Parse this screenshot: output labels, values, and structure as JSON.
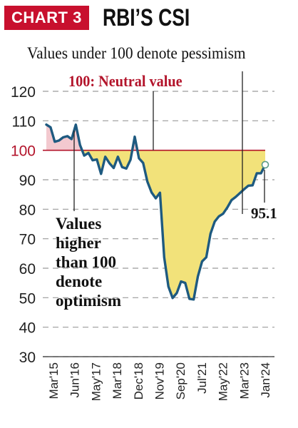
{
  "header": {
    "tag": "CHART 3",
    "title": "RBI’S CSI"
  },
  "annotations": {
    "pessimism": "Values under 100 denote pessimism",
    "neutral": "100: Neutral value",
    "optimism_lines": [
      "Values",
      "higher",
      "than 100",
      "denote",
      "optimism"
    ],
    "last_value": "95.1"
  },
  "colors": {
    "line": "#1e5a80",
    "fill_below": "#f2e27a",
    "fill_above": "#f3c9cf",
    "neutral_line": "#b3142b",
    "grid": "#9a9a9a",
    "tag_bg": "#c8102e"
  },
  "chart_data": {
    "type": "line",
    "title": "RBI’S CSI",
    "ylim": [
      30,
      120
    ],
    "y_ticks": [
      30,
      40,
      50,
      60,
      70,
      80,
      90,
      100,
      110,
      120
    ],
    "neutral": 100,
    "grid": "horizontal dashed",
    "x_tick_labels": [
      "Mar'15",
      "Jun'16",
      "May'17",
      "Mar'18",
      "Dec'18",
      "Nov'19",
      "Sep'20",
      "Jul'21",
      "May'22",
      "Mar'23",
      "Jan'24"
    ],
    "series": [
      {
        "values": [
          108.7,
          107.8,
          102.9,
          103.3,
          104.4,
          104.8,
          103.8,
          108.7,
          101.8,
          98.2,
          99.1,
          96.6,
          96.9,
          92.0,
          97.8,
          95.6,
          94.0,
          97.8,
          94.3,
          93.8,
          96.8,
          104.6,
          97.3,
          95.7,
          89.4,
          85.7,
          83.7,
          85.6,
          63.7,
          53.8,
          49.9,
          51.6,
          55.5,
          55.0,
          49.6,
          49.4,
          57.2,
          62.3,
          63.7,
          71.7,
          75.8,
          77.6,
          78.5,
          80.6,
          83.1,
          84.2,
          85.5,
          86.8,
          88.0,
          88.1,
          92.2,
          92.2,
          95.1
        ]
      }
    ]
  }
}
